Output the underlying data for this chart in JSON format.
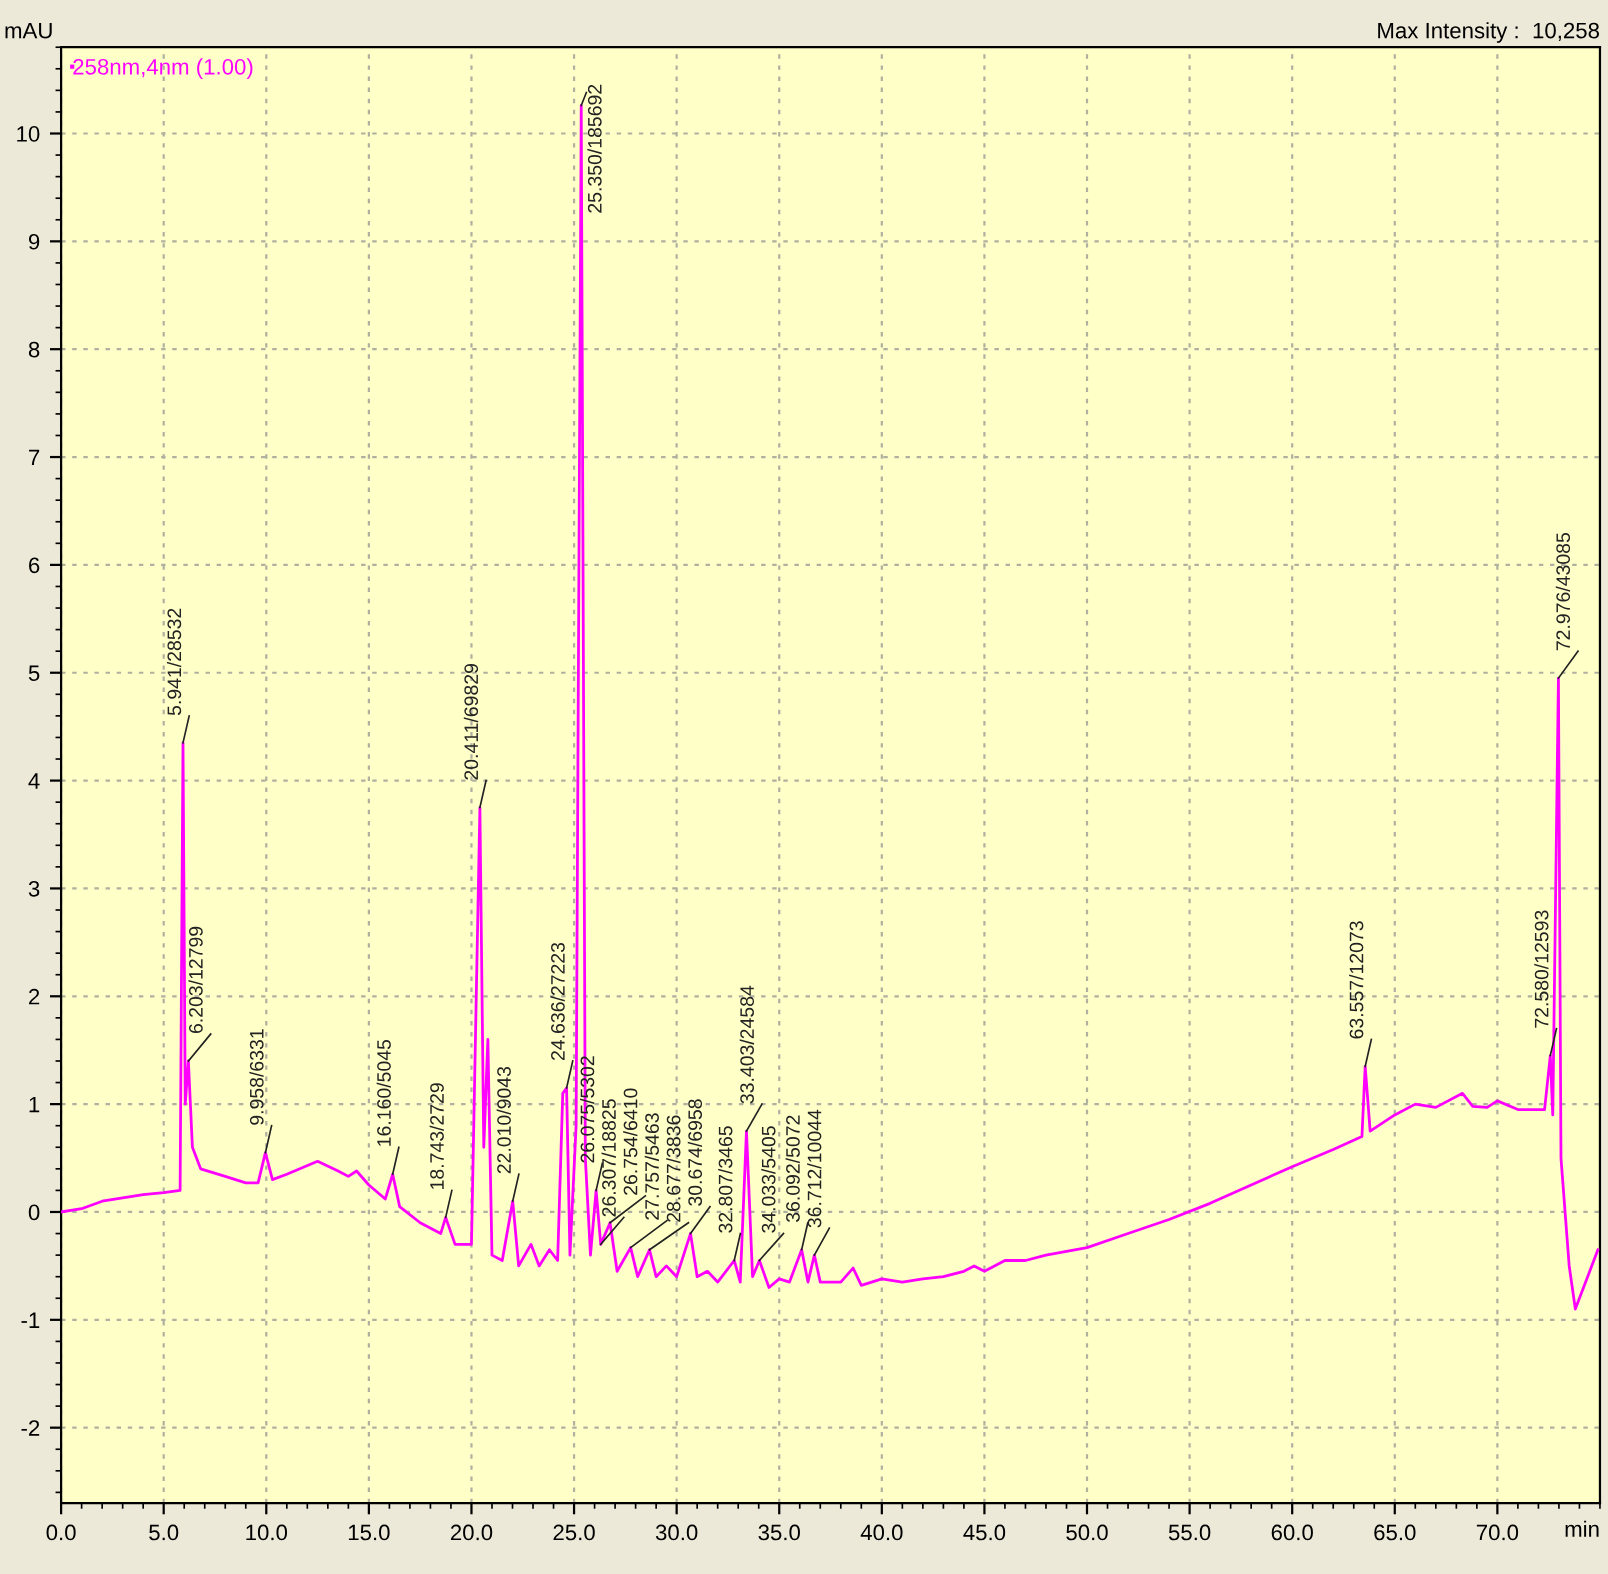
{
  "chart_data": {
    "type": "line",
    "xlabel": "min",
    "ylabel": "mAU",
    "xlim": [
      0,
      75
    ],
    "ylim": [
      -2.7,
      10.8
    ],
    "xticks": [
      {
        "value": 0,
        "label": "0.0"
      },
      {
        "value": 5,
        "label": "5.0"
      },
      {
        "value": 10,
        "label": "10.0"
      },
      {
        "value": 15,
        "label": "15.0"
      },
      {
        "value": 20,
        "label": "20.0"
      },
      {
        "value": 25,
        "label": "25.0"
      },
      {
        "value": 30,
        "label": "30.0"
      },
      {
        "value": 35,
        "label": "35.0"
      },
      {
        "value": 40,
        "label": "40.0"
      },
      {
        "value": 45,
        "label": "45.0"
      },
      {
        "value": 50,
        "label": "50.0"
      },
      {
        "value": 55,
        "label": "55.0"
      },
      {
        "value": 60,
        "label": "60.0"
      },
      {
        "value": 65,
        "label": "65.0"
      },
      {
        "value": 70,
        "label": "70.0"
      }
    ],
    "yticks": [
      -2,
      -1,
      0,
      1,
      2,
      3,
      4,
      5,
      6,
      7,
      8,
      9,
      10
    ],
    "grid": true,
    "legend": "top left",
    "marker": "none",
    "line_style": "solid",
    "x": [
      0,
      1,
      2,
      3,
      4,
      5,
      5.8,
      5.941,
      6.05,
      6.203,
      6.4,
      6.8,
      8,
      9,
      9.6,
      9.958,
      10.3,
      11,
      12.5,
      13.5,
      14,
      14.4,
      15,
      15.8,
      16.16,
      16.5,
      17.5,
      18.5,
      18.743,
      19.2,
      20,
      20.411,
      20.6,
      20.8,
      21.0,
      21.5,
      22.01,
      22.3,
      22.9,
      23.3,
      23.8,
      24.2,
      24.45,
      24.636,
      24.8,
      25.1,
      25.35,
      25.55,
      25.8,
      26.075,
      26.3,
      26.754,
      27.1,
      27.757,
      28.1,
      28.677,
      29.0,
      29.5,
      30.0,
      30.674,
      31,
      31.5,
      32,
      32.807,
      33.1,
      33.403,
      33.7,
      34.033,
      34.5,
      35,
      35.5,
      36.092,
      36.4,
      36.712,
      37,
      38,
      38.6,
      39,
      40,
      41,
      42,
      43,
      44,
      44.5,
      45,
      46,
      47,
      48,
      50,
      52,
      54,
      56,
      58,
      60,
      62,
      63.4,
      63.557,
      63.8,
      65,
      66,
      67,
      68.3,
      68.8,
      69.5,
      70,
      71,
      72.3,
      72.58,
      72.7,
      72.976,
      73.1,
      73.5,
      73.8,
      74.2,
      74.9
    ],
    "series": [
      {
        "name": "258nm,4nm (1.00)",
        "color": "#ff00ff",
        "values": [
          0,
          0.03,
          0.1,
          0.13,
          0.16,
          0.18,
          0.2,
          4.35,
          1.0,
          1.4,
          0.6,
          0.4,
          0.33,
          0.27,
          0.27,
          0.55,
          0.3,
          0.35,
          0.47,
          0.38,
          0.33,
          0.38,
          0.25,
          0.12,
          0.35,
          0.05,
          -0.1,
          -0.2,
          -0.05,
          -0.3,
          -0.3,
          3.75,
          0.6,
          1.6,
          -0.4,
          -0.45,
          0.1,
          -0.5,
          -0.3,
          -0.5,
          -0.35,
          -0.45,
          1.1,
          1.15,
          -0.4,
          0.8,
          10.26,
          0.5,
          -0.4,
          0.2,
          -0.3,
          -0.1,
          -0.55,
          -0.33,
          -0.6,
          -0.35,
          -0.6,
          -0.5,
          -0.6,
          -0.2,
          -0.6,
          -0.55,
          -0.65,
          -0.45,
          -0.65,
          0.75,
          -0.6,
          -0.45,
          -0.7,
          -0.62,
          -0.65,
          -0.35,
          -0.65,
          -0.4,
          -0.65,
          -0.65,
          -0.52,
          -0.68,
          -0.62,
          -0.65,
          -0.62,
          -0.6,
          -0.55,
          -0.5,
          -0.55,
          -0.45,
          -0.45,
          -0.4,
          -0.33,
          -0.2,
          -0.07,
          0.08,
          0.25,
          0.42,
          0.58,
          0.7,
          1.35,
          0.75,
          0.9,
          1.0,
          0.97,
          1.1,
          0.98,
          0.97,
          1.03,
          0.95,
          0.95,
          1.45,
          0.9,
          4.95,
          0.5,
          -0.5,
          -0.9,
          -0.7,
          -0.35
        ]
      }
    ],
    "annotations": [
      "Max Intensity :  10,258",
      {
        "text": "5.941/28532",
        "x": 5.941,
        "y": 4.35
      },
      {
        "text": "6.203/12799",
        "x": 6.203,
        "y": 1.4
      },
      {
        "text": "9.958/6331",
        "x": 9.958,
        "y": 0.55
      },
      {
        "text": "16.160/5045",
        "x": 16.16,
        "y": 0.35
      },
      {
        "text": "18.743/2729",
        "x": 18.743,
        "y": -0.05
      },
      {
        "text": "20.411/69829",
        "x": 20.411,
        "y": 3.75
      },
      {
        "text": "22.010/9043",
        "x": 22.01,
        "y": 0.1
      },
      {
        "text": "24.636/27223",
        "x": 24.636,
        "y": 1.15
      },
      {
        "text": "25.350/185692",
        "x": 25.35,
        "y": 10.26
      },
      {
        "text": "26.075/5302",
        "x": 26.075,
        "y": 0.2
      },
      {
        "text": "26.307/18825",
        "x": 26.3,
        "y": -0.3
      },
      {
        "text": "26.754/6410",
        "x": 26.754,
        "y": -0.1
      },
      {
        "text": "27.757/5463",
        "x": 27.757,
        "y": -0.33
      },
      {
        "text": "28.677/3836",
        "x": 28.677,
        "y": -0.35
      },
      {
        "text": "30.674/6958",
        "x": 30.674,
        "y": -0.2
      },
      {
        "text": "32.807/3465",
        "x": 32.807,
        "y": -0.45
      },
      {
        "text": "33.403/24584",
        "x": 33.403,
        "y": 0.75
      },
      {
        "text": "34.033/5405",
        "x": 34.033,
        "y": -0.45
      },
      {
        "text": "36.092/5072",
        "x": 36.092,
        "y": -0.35
      },
      {
        "text": "36.712/10044",
        "x": 36.712,
        "y": -0.4
      },
      {
        "text": "63.557/12073",
        "x": 63.557,
        "y": 1.35
      },
      {
        "text": "72.580/12593",
        "x": 72.58,
        "y": 1.45
      },
      {
        "text": "72.976/43085",
        "x": 72.976,
        "y": 4.95
      }
    ]
  }
}
